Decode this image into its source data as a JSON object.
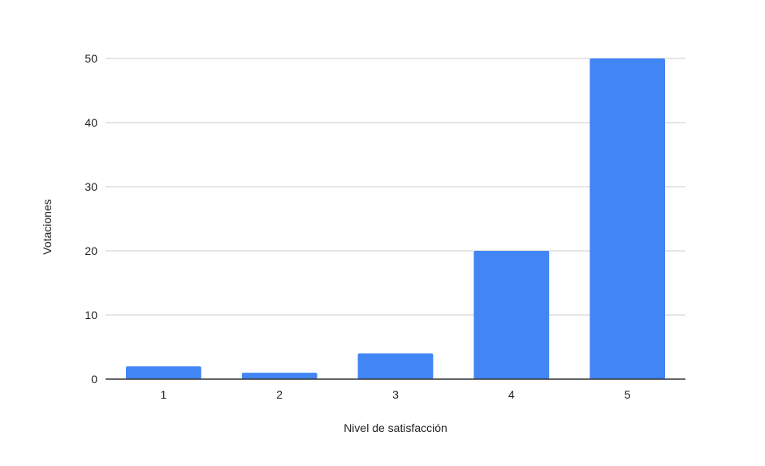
{
  "chart_data": {
    "type": "bar",
    "title": "",
    "xlabel": "Nivel de satisfacción",
    "ylabel": "Votaciones",
    "categories": [
      "1",
      "2",
      "3",
      "4",
      "5"
    ],
    "values": [
      2,
      1,
      4,
      20,
      50
    ],
    "ylim": [
      0,
      50
    ],
    "yticks": [
      0,
      10,
      20,
      30,
      40,
      50
    ],
    "grid": true,
    "legend": "none",
    "colors": {
      "bar": "#4285f4",
      "grid": "#cccccc",
      "axis": "#333333"
    }
  }
}
